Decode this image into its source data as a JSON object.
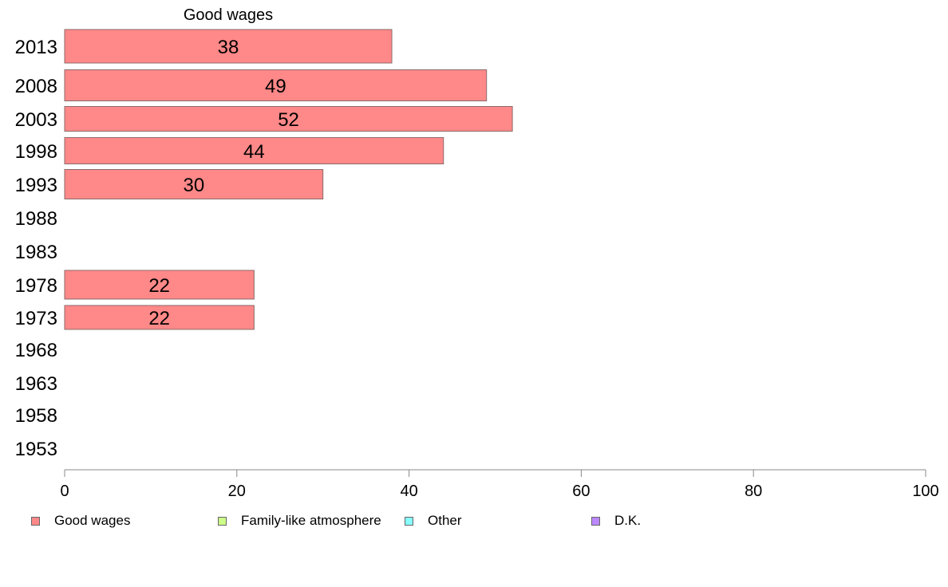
{
  "chart_data": {
    "type": "bar",
    "orientation": "horizontal",
    "title": "Good wages",
    "categories": [
      "2013",
      "2008",
      "2003",
      "1998",
      "1993",
      "1988",
      "1983",
      "1978",
      "1973",
      "1968",
      "1963",
      "1958",
      "1953"
    ],
    "series": [
      {
        "name": "Good wages",
        "color": "#ff8888",
        "values": [
          38,
          49,
          52,
          44,
          30,
          null,
          null,
          22,
          22,
          null,
          null,
          null,
          null
        ],
        "labels": [
          "38",
          "49",
          "52",
          "44",
          "30",
          "",
          "",
          "22",
          "22",
          "",
          "",
          "",
          ""
        ]
      }
    ],
    "xlim": [
      0,
      100
    ],
    "xticks": [
      0,
      20,
      40,
      60,
      80,
      100
    ],
    "xtick_labels": [
      "0",
      "20",
      "40",
      "60",
      "80",
      "100"
    ],
    "grid": false,
    "legend_placement": "bottom",
    "legend": [
      {
        "label": "Good wages",
        "color": "#ff8888"
      },
      {
        "label": "Family-like atmosphere",
        "color": "#ccff88"
      },
      {
        "label": "Other",
        "color": "#88ffff"
      },
      {
        "label": "D.K.",
        "color": "#bb88ff"
      }
    ]
  }
}
